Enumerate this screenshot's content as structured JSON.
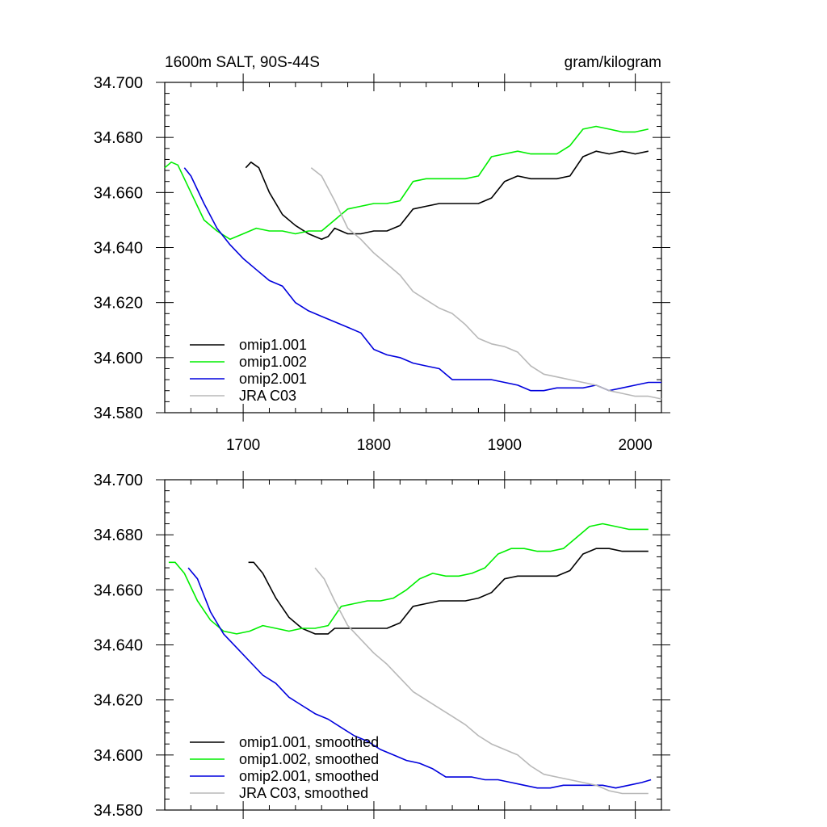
{
  "panel_title_left": "1600m SALT, 90S-44S",
  "panel_title_right": "gram/kilogram",
  "chart_data": [
    {
      "type": "line",
      "title": "1600m SALT, 90S-44S",
      "units": "gram/kilogram",
      "xlim": [
        1640,
        2020
      ],
      "ylim": [
        34.58,
        34.7
      ],
      "x_ticks": [
        1700,
        1800,
        1900,
        2000
      ],
      "y_ticks": [
        "34.700",
        "34.680",
        "34.660",
        "34.640",
        "34.620",
        "34.600",
        "34.580"
      ],
      "legend_placement": "bottom-left",
      "series": [
        {
          "name": "omip1.001",
          "color": "#000000",
          "x": [
            1702,
            1706,
            1712,
            1720,
            1730,
            1740,
            1750,
            1760,
            1765,
            1770,
            1780,
            1790,
            1800,
            1810,
            1820,
            1830,
            1840,
            1850,
            1860,
            1870,
            1880,
            1890,
            1900,
            1910,
            1920,
            1930,
            1940,
            1950,
            1960,
            1970,
            1980,
            1990,
            2000,
            2010
          ],
          "y": [
            34.669,
            34.671,
            34.669,
            34.66,
            34.652,
            34.648,
            34.645,
            34.643,
            34.644,
            34.647,
            34.645,
            34.645,
            34.646,
            34.646,
            34.648,
            34.654,
            34.655,
            34.656,
            34.656,
            34.656,
            34.656,
            34.658,
            34.664,
            34.666,
            34.665,
            34.665,
            34.665,
            34.666,
            34.673,
            34.675,
            34.674,
            34.675,
            34.674,
            34.675
          ]
        },
        {
          "name": "omip1.002",
          "color": "#00ee00",
          "x": [
            1640,
            1645,
            1650,
            1660,
            1670,
            1680,
            1690,
            1700,
            1710,
            1720,
            1730,
            1740,
            1750,
            1760,
            1770,
            1780,
            1790,
            1800,
            1810,
            1820,
            1830,
            1840,
            1850,
            1860,
            1870,
            1880,
            1890,
            1900,
            1910,
            1920,
            1930,
            1940,
            1950,
            1960,
            1970,
            1980,
            1990,
            2000,
            2010
          ],
          "y": [
            34.669,
            34.671,
            34.67,
            34.66,
            34.65,
            34.646,
            34.643,
            34.645,
            34.647,
            34.646,
            34.646,
            34.645,
            34.646,
            34.646,
            34.65,
            34.654,
            34.655,
            34.656,
            34.656,
            34.657,
            34.664,
            34.665,
            34.665,
            34.665,
            34.665,
            34.666,
            34.673,
            34.674,
            34.675,
            34.674,
            34.674,
            34.674,
            34.677,
            34.683,
            34.684,
            34.683,
            34.682,
            34.682,
            34.683
          ]
        },
        {
          "name": "omip2.001",
          "color": "#0000dd",
          "x": [
            1655,
            1660,
            1670,
            1680,
            1690,
            1700,
            1710,
            1720,
            1730,
            1740,
            1750,
            1760,
            1770,
            1780,
            1790,
            1800,
            1810,
            1820,
            1830,
            1840,
            1850,
            1860,
            1870,
            1880,
            1890,
            1900,
            1910,
            1920,
            1930,
            1940,
            1950,
            1960,
            1970,
            1980,
            1990,
            2000,
            2010,
            2020
          ],
          "y": [
            34.669,
            34.666,
            34.656,
            34.647,
            34.641,
            34.636,
            34.632,
            34.628,
            34.626,
            34.62,
            34.617,
            34.615,
            34.613,
            34.611,
            34.609,
            34.603,
            34.601,
            34.6,
            34.598,
            34.597,
            34.596,
            34.592,
            34.592,
            34.592,
            34.592,
            34.591,
            34.59,
            34.588,
            34.588,
            34.589,
            34.589,
            34.589,
            34.59,
            34.588,
            34.589,
            34.59,
            34.591,
            34.591
          ]
        },
        {
          "name": "JRA C03",
          "color": "#b8b8b8",
          "x": [
            1752,
            1760,
            1770,
            1780,
            1790,
            1800,
            1810,
            1820,
            1830,
            1840,
            1850,
            1860,
            1870,
            1880,
            1890,
            1900,
            1910,
            1920,
            1930,
            1940,
            1950,
            1960,
            1970,
            1980,
            1990,
            2000,
            2010,
            2020
          ],
          "y": [
            34.669,
            34.666,
            34.657,
            34.647,
            34.643,
            34.638,
            34.634,
            34.63,
            34.624,
            34.621,
            34.618,
            34.616,
            34.612,
            34.607,
            34.605,
            34.604,
            34.602,
            34.597,
            34.594,
            34.593,
            34.592,
            34.591,
            34.59,
            34.588,
            34.587,
            34.586,
            34.586,
            34.585
          ]
        }
      ]
    },
    {
      "type": "line",
      "title": "",
      "xlim": [
        1640,
        2020
      ],
      "ylim": [
        34.58,
        34.7
      ],
      "y_ticks": [
        "34.700",
        "34.680",
        "34.660",
        "34.640",
        "34.620",
        "34.600",
        "34.580"
      ],
      "legend_placement": "bottom-left",
      "series": [
        {
          "name": "omip1.001, smoothed",
          "color": "#000000",
          "x": [
            1704,
            1708,
            1715,
            1725,
            1735,
            1745,
            1755,
            1765,
            1770,
            1780,
            1790,
            1800,
            1810,
            1820,
            1830,
            1840,
            1850,
            1860,
            1870,
            1880,
            1890,
            1900,
            1910,
            1920,
            1930,
            1940,
            1950,
            1960,
            1970,
            1980,
            1990,
            2000,
            2010
          ],
          "y": [
            34.67,
            34.67,
            34.666,
            34.657,
            34.65,
            34.646,
            34.644,
            34.644,
            34.646,
            34.646,
            34.646,
            34.646,
            34.646,
            34.648,
            34.654,
            34.655,
            34.656,
            34.656,
            34.656,
            34.657,
            34.659,
            34.664,
            34.665,
            34.665,
            34.665,
            34.665,
            34.667,
            34.673,
            34.675,
            34.675,
            34.674,
            34.674,
            34.674
          ]
        },
        {
          "name": "omip1.002, smoothed",
          "color": "#00ee00",
          "x": [
            1643,
            1648,
            1655,
            1665,
            1675,
            1685,
            1695,
            1705,
            1715,
            1725,
            1735,
            1745,
            1755,
            1765,
            1775,
            1785,
            1795,
            1805,
            1815,
            1825,
            1835,
            1845,
            1855,
            1865,
            1875,
            1885,
            1895,
            1905,
            1915,
            1925,
            1935,
            1945,
            1955,
            1965,
            1975,
            1985,
            1995,
            2005,
            2010
          ],
          "y": [
            34.67,
            34.67,
            34.666,
            34.656,
            34.649,
            34.645,
            34.644,
            34.645,
            34.647,
            34.646,
            34.645,
            34.646,
            34.646,
            34.647,
            34.654,
            34.655,
            34.656,
            34.656,
            34.657,
            34.66,
            34.664,
            34.666,
            34.665,
            34.665,
            34.666,
            34.668,
            34.673,
            34.675,
            34.675,
            34.674,
            34.674,
            34.675,
            34.679,
            34.683,
            34.684,
            34.683,
            34.682,
            34.682,
            34.682
          ]
        },
        {
          "name": "omip2.001, smoothed",
          "color": "#0000dd",
          "x": [
            1658,
            1665,
            1675,
            1685,
            1695,
            1705,
            1715,
            1725,
            1735,
            1745,
            1755,
            1765,
            1775,
            1785,
            1795,
            1805,
            1815,
            1825,
            1835,
            1845,
            1855,
            1865,
            1875,
            1885,
            1895,
            1905,
            1915,
            1925,
            1935,
            1945,
            1955,
            1965,
            1975,
            1985,
            1995,
            2005,
            2012
          ],
          "y": [
            34.668,
            34.664,
            34.652,
            34.644,
            34.639,
            34.634,
            34.629,
            34.626,
            34.621,
            34.618,
            34.615,
            34.613,
            34.61,
            34.607,
            34.605,
            34.602,
            34.6,
            34.598,
            34.597,
            34.595,
            34.592,
            34.592,
            34.592,
            34.591,
            34.591,
            34.59,
            34.589,
            34.588,
            34.588,
            34.589,
            34.589,
            34.589,
            34.589,
            34.588,
            34.589,
            34.59,
            34.591
          ]
        },
        {
          "name": "JRA C03, smoothed",
          "color": "#b8b8b8",
          "x": [
            1755,
            1762,
            1770,
            1780,
            1790,
            1800,
            1810,
            1820,
            1830,
            1840,
            1850,
            1860,
            1870,
            1880,
            1890,
            1900,
            1910,
            1920,
            1930,
            1940,
            1950,
            1960,
            1970,
            1980,
            1990,
            2000,
            2010
          ],
          "y": [
            34.668,
            34.664,
            34.656,
            34.647,
            34.642,
            34.637,
            34.633,
            34.628,
            34.623,
            34.62,
            34.617,
            34.614,
            34.611,
            34.607,
            34.604,
            34.602,
            34.6,
            34.596,
            34.593,
            34.592,
            34.591,
            34.59,
            34.589,
            34.587,
            34.586,
            34.586,
            34.586
          ]
        }
      ]
    }
  ]
}
